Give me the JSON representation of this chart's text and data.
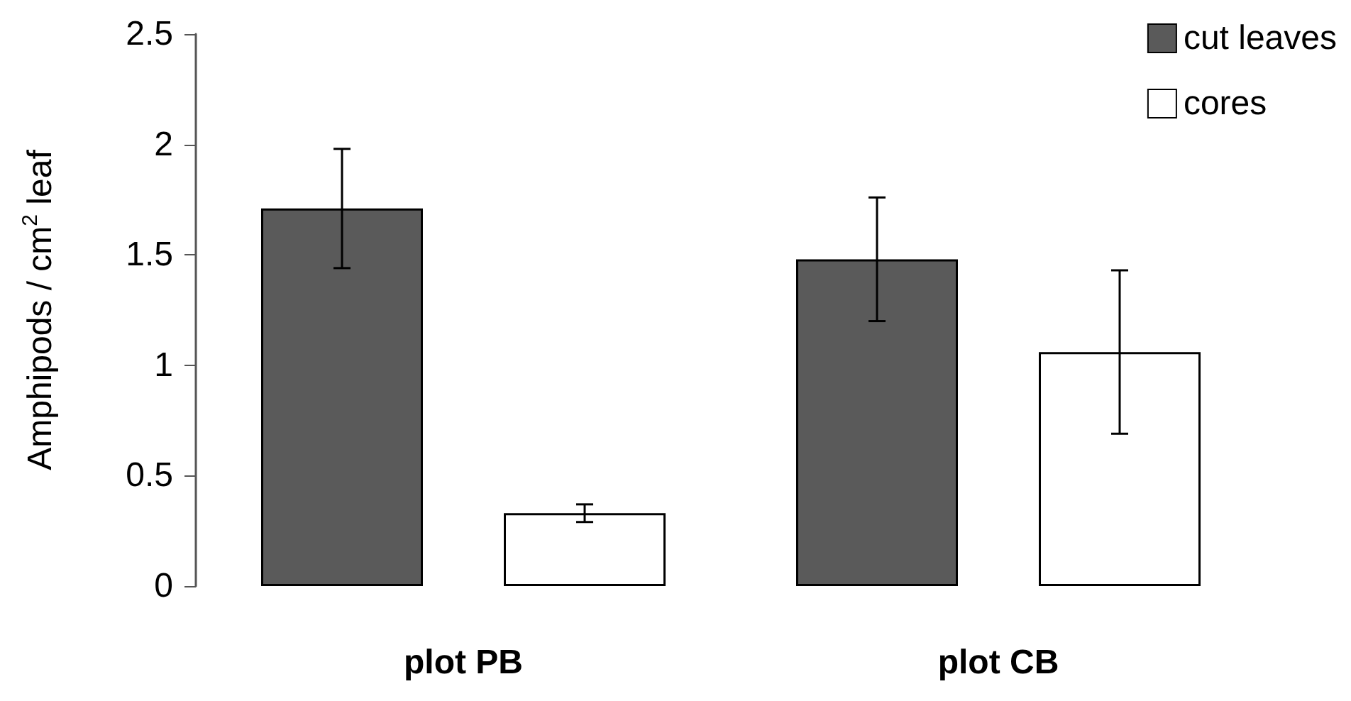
{
  "chart_data": {
    "type": "bar",
    "ylabel": "Amphipods / cm$^{2}$ leaf",
    "categories": [
      "plot PB",
      "plot CB"
    ],
    "series": [
      {
        "name": "cut leaves",
        "color": "#5a5a5a",
        "values": [
          1.71,
          1.48
        ],
        "errors": [
          0.27,
          0.28
        ]
      },
      {
        "name": "cores",
        "color": "#ffffff",
        "values": [
          0.33,
          1.06
        ],
        "errors": [
          0.04,
          0.37
        ]
      }
    ],
    "ylim": [
      0,
      2.5
    ],
    "yticks": [
      0,
      0.5,
      1,
      1.5,
      2,
      2.5
    ],
    "grid": false,
    "legend": "top right"
  }
}
